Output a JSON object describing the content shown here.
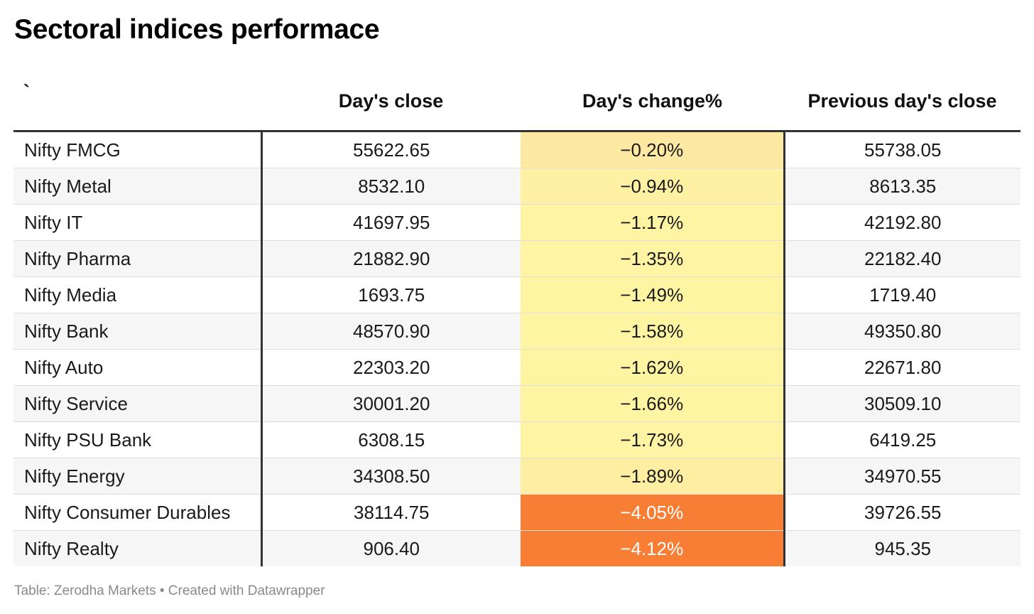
{
  "title": "Sectoral indices performace",
  "footer": "Table: Zerodha Markets • Created with Datawrapper",
  "chart_data": {
    "type": "table",
    "title": "Sectoral indices performace",
    "columns": [
      "`",
      "Day's close",
      "Day's change%",
      "Previous day's close"
    ],
    "rows": [
      {
        "name": "Nifty FMCG",
        "close": "55622.65",
        "change": "−0.20%",
        "change_value": -0.2,
        "prev": "55738.05",
        "bg": "#fee9a2",
        "fg": "#1a1a1a"
      },
      {
        "name": "Nifty Metal",
        "close": "8532.10",
        "change": "−0.94%",
        "change_value": -0.94,
        "prev": "8613.35",
        "bg": "#fef1a3",
        "fg": "#1a1a1a"
      },
      {
        "name": "Nifty IT",
        "close": "41697.95",
        "change": "−1.17%",
        "change_value": -1.17,
        "prev": "42192.80",
        "bg": "#fef4a3",
        "fg": "#1a1a1a"
      },
      {
        "name": "Nifty Pharma",
        "close": "21882.90",
        "change": "−1.35%",
        "change_value": -1.35,
        "prev": "22182.40",
        "bg": "#fef4a3",
        "fg": "#1a1a1a"
      },
      {
        "name": "Nifty Media",
        "close": "1693.75",
        "change": "−1.49%",
        "change_value": -1.49,
        "prev": "1719.40",
        "bg": "#fef5a3",
        "fg": "#1a1a1a"
      },
      {
        "name": "Nifty Bank",
        "close": "48570.90",
        "change": "−1.58%",
        "change_value": -1.58,
        "prev": "49350.80",
        "bg": "#fef5a3",
        "fg": "#1a1a1a"
      },
      {
        "name": "Nifty Auto",
        "close": "22303.20",
        "change": "−1.62%",
        "change_value": -1.62,
        "prev": "22671.80",
        "bg": "#fef5a3",
        "fg": "#1a1a1a"
      },
      {
        "name": "Nifty Service",
        "close": "30001.20",
        "change": "−1.66%",
        "change_value": -1.66,
        "prev": "30509.10",
        "bg": "#fef5a3",
        "fg": "#1a1a1a"
      },
      {
        "name": "Nifty PSU Bank",
        "close": "6308.15",
        "change": "−1.73%",
        "change_value": -1.73,
        "prev": "6419.25",
        "bg": "#fef4a3",
        "fg": "#1a1a1a"
      },
      {
        "name": "Nifty Energy",
        "close": "34308.50",
        "change": "−1.89%",
        "change_value": -1.89,
        "prev": "34970.55",
        "bg": "#feeea1",
        "fg": "#1a1a1a"
      },
      {
        "name": "Nifty Consumer Durables",
        "close": "38114.75",
        "change": "−4.05%",
        "change_value": -4.05,
        "prev": "39726.55",
        "bg": "#f77f35",
        "fg": "#ffffff"
      },
      {
        "name": "Nifty Realty",
        "close": "906.40",
        "change": "−4.12%",
        "change_value": -4.12,
        "prev": "945.35",
        "bg": "#f77e34",
        "fg": "#ffffff"
      }
    ]
  }
}
